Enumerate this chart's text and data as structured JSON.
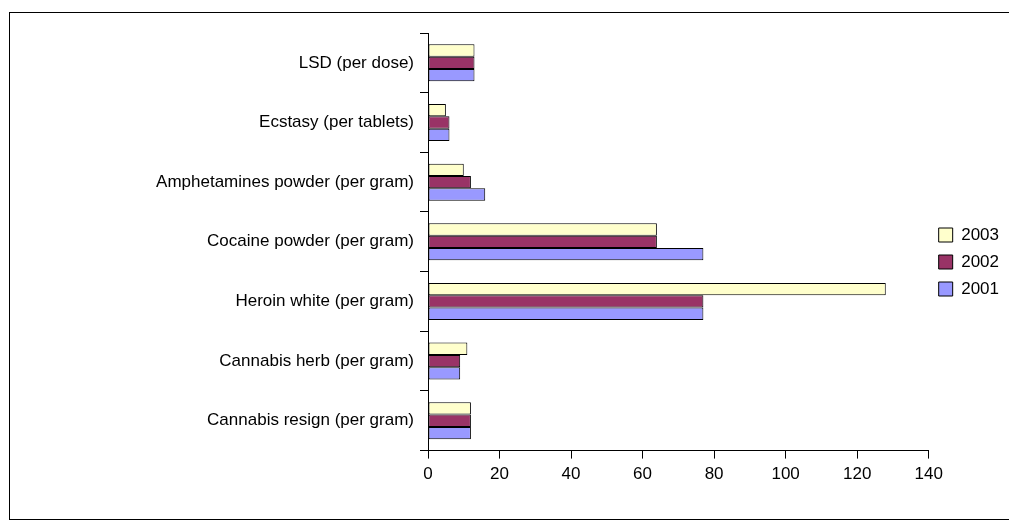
{
  "chart_data": {
    "type": "bar",
    "orientation": "horizontal",
    "categories": [
      "LSD (per dose)",
      "Ecstasy (per tablets)",
      "Amphetamines powder (per gram)",
      "Cocaine powder (per gram)",
      "Heroin white (per gram)",
      "Cannabis herb (per gram)",
      "Cannabis resign (per gram)"
    ],
    "series": [
      {
        "name": "2003",
        "color": "#ffffcc",
        "values": [
          13,
          5,
          10,
          64,
          128,
          11,
          12
        ]
      },
      {
        "name": "2002",
        "color": "#993366",
        "values": [
          13,
          6,
          12,
          64,
          77,
          9,
          12
        ]
      },
      {
        "name": "2001",
        "color": "#9999ff",
        "values": [
          13,
          6,
          16,
          77,
          77,
          9,
          12
        ]
      }
    ],
    "xlim": [
      0,
      140
    ],
    "xticks": [
      0,
      20,
      40,
      60,
      80,
      100,
      120,
      140
    ],
    "grid": false,
    "legend": "right"
  }
}
